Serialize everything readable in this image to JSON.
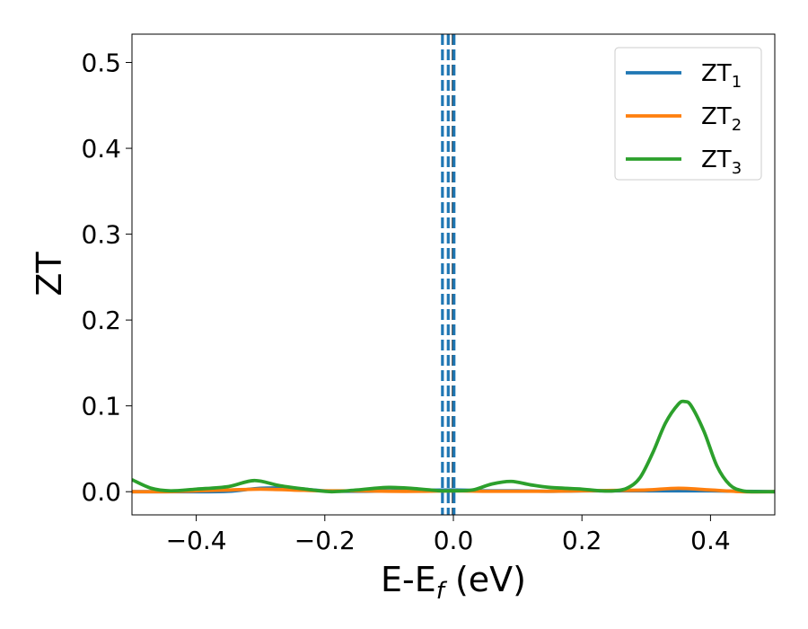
{
  "chart_data": {
    "type": "line",
    "xlabel": {
      "main": "E-E",
      "sub": "f",
      "unit": " (eV)"
    },
    "ylabel": "ZT",
    "xlim": [
      -0.5,
      0.5
    ],
    "ylim": [
      -0.027,
      0.533
    ],
    "x_ticks": [
      -0.4,
      -0.2,
      0.0,
      0.2,
      0.4
    ],
    "x_tick_labels": [
      "−0.4",
      "−0.2",
      "0.0",
      "0.2",
      "0.4"
    ],
    "y_ticks": [
      0.0,
      0.1,
      0.2,
      0.3,
      0.4,
      0.5
    ],
    "y_tick_labels": [
      "0.0",
      "0.1",
      "0.2",
      "0.3",
      "0.4",
      "0.5"
    ],
    "grid": false,
    "legend_position": "top-right",
    "series": [
      {
        "name": "ZT",
        "name_sub": "1",
        "color": "#1f77b4",
        "x": [
          -0.5,
          -0.45,
          -0.4,
          -0.35,
          -0.3,
          -0.25,
          -0.2,
          -0.15,
          -0.1,
          -0.05,
          0.0,
          0.05,
          0.1,
          0.15,
          0.2,
          0.25,
          0.3,
          0.35,
          0.4,
          0.45,
          0.5
        ],
        "y": [
          0.0,
          0.0,
          0.0,
          0.0005,
          0.004,
          0.004,
          0.001,
          0.0005,
          0.001,
          0.0015,
          0.002,
          0.001,
          0.001,
          0.0005,
          0.001,
          0.001,
          0.001,
          0.001,
          0.001,
          0.0005,
          0.0
        ]
      },
      {
        "name": "ZT",
        "name_sub": "2",
        "color": "#ff7f0e",
        "x": [
          -0.5,
          -0.45,
          -0.4,
          -0.35,
          -0.3,
          -0.25,
          -0.2,
          -0.15,
          -0.1,
          -0.05,
          0.0,
          0.05,
          0.1,
          0.15,
          0.2,
          0.25,
          0.3,
          0.35,
          0.4,
          0.45,
          0.5
        ],
        "y": [
          0.0,
          0.0,
          0.001,
          0.002,
          0.003,
          0.002,
          0.001,
          0.001,
          0.0005,
          0.0005,
          0.001,
          0.0005,
          0.0005,
          0.0005,
          0.001,
          0.0015,
          0.002,
          0.004,
          0.002,
          0.0,
          0.0
        ]
      },
      {
        "name": "ZT",
        "name_sub": "3",
        "color": "#2ca02c",
        "x": [
          -0.5,
          -0.47,
          -0.44,
          -0.4,
          -0.35,
          -0.31,
          -0.27,
          -0.23,
          -0.19,
          -0.15,
          -0.1,
          -0.05,
          -0.02,
          0.0,
          0.03,
          0.06,
          0.09,
          0.12,
          0.15,
          0.2,
          0.23,
          0.25,
          0.27,
          0.29,
          0.31,
          0.33,
          0.35,
          0.36,
          0.37,
          0.39,
          0.41,
          0.43,
          0.45,
          0.47,
          0.5
        ],
        "y": [
          0.014,
          0.004,
          0.001,
          0.003,
          0.006,
          0.013,
          0.007,
          0.003,
          0.0,
          0.002,
          0.005,
          0.003,
          0.001,
          0.001,
          0.002,
          0.009,
          0.012,
          0.008,
          0.005,
          0.003,
          0.001,
          0.001,
          0.004,
          0.016,
          0.045,
          0.08,
          0.102,
          0.105,
          0.1,
          0.07,
          0.03,
          0.008,
          0.001,
          0.0,
          0.0
        ]
      }
    ],
    "vertical_lines": [
      {
        "x": -0.017,
        "color": "#1f77b4",
        "style": "dashed"
      },
      {
        "x": -0.008,
        "color": "#1f77b4",
        "style": "dashed"
      },
      {
        "x": 0.0,
        "color": "#000000",
        "style": "dashed"
      },
      {
        "x": 0.001,
        "color": "#1f77b4",
        "style": "dashed"
      }
    ]
  }
}
